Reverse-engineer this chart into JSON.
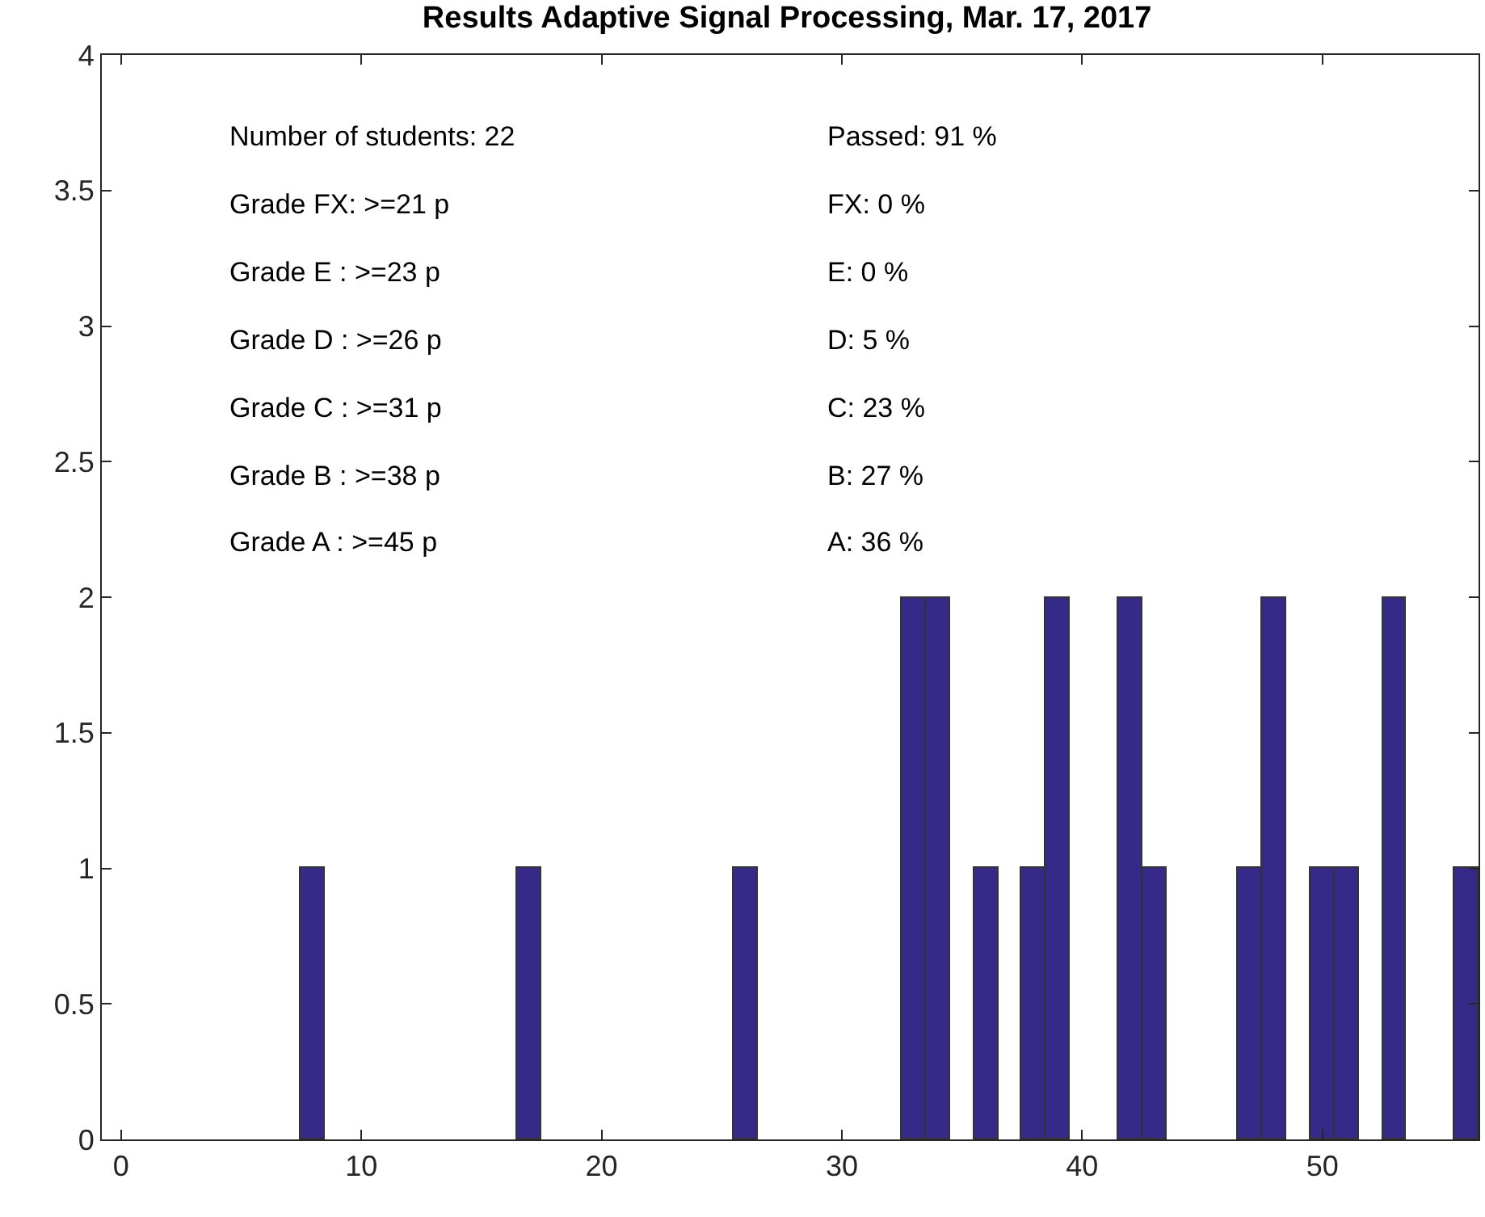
{
  "chart_data": {
    "type": "histogram",
    "title": "Results Adaptive Signal Processing, Mar. 17, 2017",
    "bins": [
      7.5,
      8.5,
      9.5,
      10.5,
      11.5,
      12.5,
      13.5,
      14.5,
      15.5,
      16.5,
      17.5,
      18.5,
      19.5,
      20.5,
      21.5,
      22.5,
      23.5,
      24.5,
      25.5,
      26.5,
      27.5,
      28.5,
      29.5,
      30.5,
      31.5,
      32.5,
      33.5,
      34.5,
      35.5,
      36.5,
      37.5,
      38.5,
      39.5,
      40.5,
      41.5,
      42.5,
      43.5,
      44.5,
      45.5,
      46.5,
      47.5,
      48.5,
      49.5,
      50.5,
      51.5,
      52.5,
      53.5,
      54.5,
      55.5,
      56.5
    ],
    "values": [
      1,
      0,
      0,
      0,
      0,
      0,
      0,
      0,
      0,
      1,
      0,
      0,
      0,
      0,
      0,
      0,
      0,
      0,
      1,
      0,
      0,
      0,
      0,
      0,
      0,
      2,
      2,
      0,
      1,
      0,
      1,
      2,
      0,
      0,
      2,
      1,
      0,
      0,
      0,
      1,
      2,
      0,
      1,
      1,
      0,
      2,
      0,
      0,
      1
    ],
    "color": "#352a87",
    "xlim": [
      -0.8,
      56.5
    ],
    "xticks": [
      0,
      10,
      20,
      30,
      40,
      50
    ],
    "ylim": [
      0,
      4
    ],
    "yticks": [
      0,
      0.5,
      1,
      1.5,
      2,
      2.5,
      3,
      3.5,
      4
    ],
    "annotations": [
      "Number of students: 22",
      "Passed: 91 %",
      "Grade FX: >=21 p",
      "FX: 0 %",
      "Grade E : >=23 p",
      "E: 0 %",
      "Grade D : >=26 p",
      "D: 5 %",
      "Grade C : >=31 p",
      "C: 23 %",
      "Grade B : >=38 p",
      "B: 27 %",
      "Grade A : >=45 p",
      "A: 36 %"
    ]
  }
}
